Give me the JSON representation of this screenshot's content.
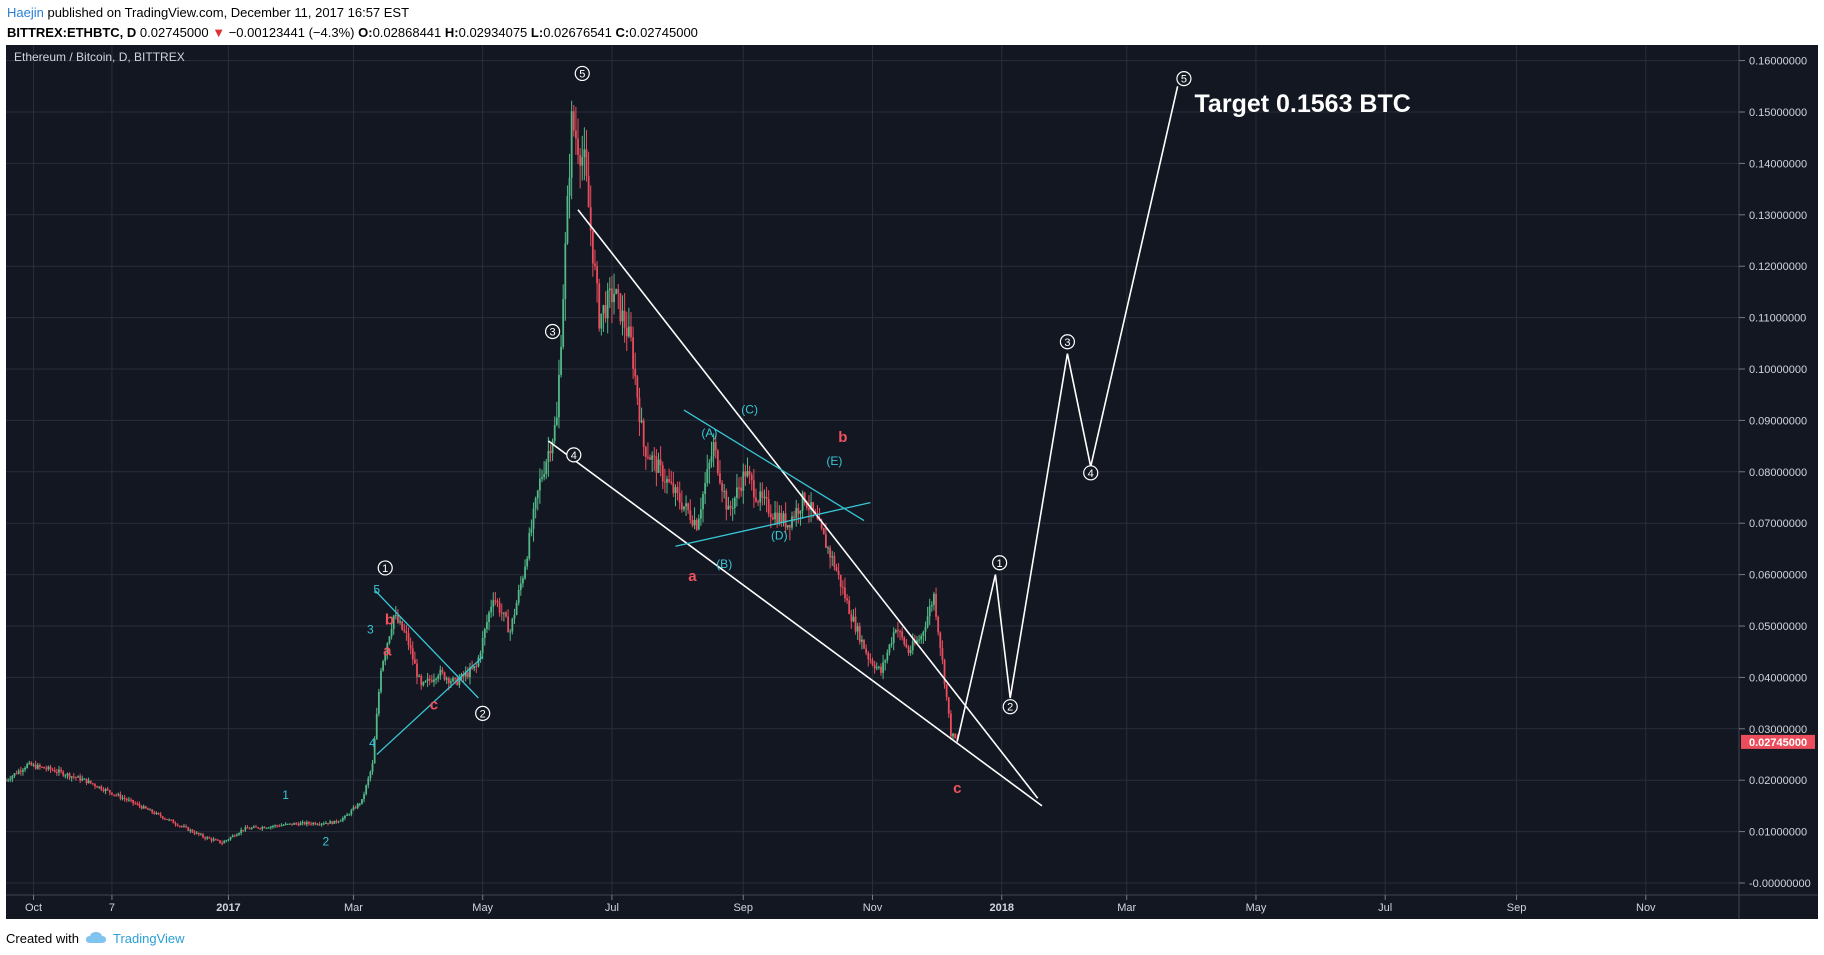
{
  "header": {
    "author": "Haejin",
    "published": " published on TradingView.com, December 11, 2017 16:57 EST",
    "symbol": "BITTREX:ETHBTC, D",
    "last": "0.02745000",
    "change": "−0.00123441 (−4.3%)",
    "ohlc": [
      {
        "label": "O:",
        "value": "0.02868441"
      },
      {
        "label": "H:",
        "value": "0.02934075"
      },
      {
        "label": "L:",
        "value": "0.02676541"
      },
      {
        "label": "C:",
        "value": "0.02745000"
      }
    ]
  },
  "footer": {
    "created_with": "Created with",
    "brand": "TradingView"
  },
  "colors": {
    "background": "#131722",
    "grid": "#2a2e39",
    "up": "#53b987",
    "down": "#eb4d5c",
    "wave": "#ffffff",
    "cyan": "#38c7d6",
    "price_tag": "#eb4d5c"
  },
  "chart_data": {
    "type": "candlestick",
    "title": "Ethereum / Bitcoin, D, BITTREX",
    "ylim": [
      0,
      0.16
    ],
    "y_ticks": [
      "0.16000000",
      "0.15000000",
      "0.14000000",
      "0.13000000",
      "0.12000000",
      "0.11000000",
      "0.10000000",
      "0.09000000",
      "0.08000000",
      "0.07000000",
      "0.06000000",
      "0.05000000",
      "0.04000000",
      "0.03000000",
      "0.02000000",
      "0.01000000",
      "-0.00000000"
    ],
    "x_ticks": [
      "Oct",
      "7",
      "2017",
      "Mar",
      "May",
      "Jul",
      "Sep",
      "Nov",
      "2018",
      "Mar",
      "May",
      "Jul",
      "Sep",
      "Nov"
    ],
    "x_range": [
      "2016-09-18",
      "2018-12-15"
    ],
    "last_price": "0.02745000",
    "price_path": [
      [
        "2016-09-18",
        0.02
      ],
      [
        "2016-09-28",
        0.023
      ],
      [
        "2016-10-10",
        0.022
      ],
      [
        "2016-10-25",
        0.02
      ],
      [
        "2016-11-15",
        0.016
      ],
      [
        "2016-12-05",
        0.012
      ],
      [
        "2016-12-20",
        0.009
      ],
      [
        "2016-12-29",
        0.0078
      ],
      [
        "2017-01-08",
        0.0105
      ],
      [
        "2017-02-01",
        0.0115
      ],
      [
        "2017-02-20",
        0.0118
      ],
      [
        "2017-02-25",
        0.0128
      ],
      [
        "2017-03-05",
        0.016
      ],
      [
        "2017-03-10",
        0.023
      ],
      [
        "2017-03-14",
        0.042
      ],
      [
        "2017-03-20",
        0.052
      ],
      [
        "2017-03-26",
        0.048
      ],
      [
        "2017-04-02",
        0.038
      ],
      [
        "2017-04-10",
        0.041
      ],
      [
        "2017-04-18",
        0.039
      ],
      [
        "2017-04-28",
        0.042
      ],
      [
        "2017-05-06",
        0.056
      ],
      [
        "2017-05-14",
        0.049
      ],
      [
        "2017-05-20",
        0.06
      ],
      [
        "2017-05-28",
        0.078
      ],
      [
        "2017-06-05",
        0.09
      ],
      [
        "2017-06-12",
        0.148
      ],
      [
        "2017-06-18",
        0.14
      ],
      [
        "2017-06-25",
        0.11
      ],
      [
        "2017-07-02",
        0.115
      ],
      [
        "2017-07-10",
        0.105
      ],
      [
        "2017-07-16",
        0.085
      ],
      [
        "2017-07-24",
        0.08
      ],
      [
        "2017-08-01",
        0.075
      ],
      [
        "2017-08-10",
        0.07
      ],
      [
        "2017-08-18",
        0.085
      ],
      [
        "2017-08-25",
        0.072
      ],
      [
        "2017-09-02",
        0.08
      ],
      [
        "2017-09-08",
        0.075
      ],
      [
        "2017-09-15",
        0.072
      ],
      [
        "2017-09-22",
        0.07
      ],
      [
        "2017-09-30",
        0.075
      ],
      [
        "2017-10-06",
        0.07
      ],
      [
        "2017-10-14",
        0.062
      ],
      [
        "2017-10-22",
        0.052
      ],
      [
        "2017-10-30",
        0.044
      ],
      [
        "2017-11-05",
        0.041
      ],
      [
        "2017-11-12",
        0.05
      ],
      [
        "2017-11-18",
        0.045
      ],
      [
        "2017-11-24",
        0.048
      ],
      [
        "2017-11-30",
        0.056
      ],
      [
        "2017-12-04",
        0.043
      ],
      [
        "2017-12-08",
        0.029
      ],
      [
        "2017-12-11",
        0.0275
      ]
    ],
    "white_lines": [
      {
        "name": "upper",
        "points": [
          [
            "2017-06-15",
            0.131
          ],
          [
            "2018-01-18",
            0.0165
          ]
        ]
      },
      {
        "name": "lower",
        "points": [
          [
            "2017-06-01",
            0.086
          ],
          [
            "2018-01-20",
            0.015
          ]
        ]
      },
      {
        "name": "projection",
        "points": [
          [
            "2017-12-11",
            0.0275
          ],
          [
            "2017-12-29",
            0.06
          ],
          [
            "2018-01-05",
            0.036
          ],
          [
            "2018-02-01",
            0.103
          ],
          [
            "2018-02-12",
            0.081
          ],
          [
            "2018-03-25",
            0.155
          ]
        ]
      }
    ],
    "cyan_lines": [
      {
        "points": [
          [
            "2017-03-11",
            0.057
          ],
          [
            "2017-04-29",
            0.036
          ]
        ]
      },
      {
        "points": [
          [
            "2017-03-12",
            0.025
          ],
          [
            "2017-05-01",
            0.044
          ]
        ]
      },
      {
        "points": [
          [
            "2017-08-04",
            0.092
          ],
          [
            "2017-10-28",
            0.0705
          ]
        ]
      },
      {
        "points": [
          [
            "2017-07-31",
            0.0655
          ],
          [
            "2017-10-31",
            0.074
          ]
        ]
      }
    ],
    "circle_labels": [
      {
        "label": "1",
        "date": "2017-03-16",
        "price": 0.0613
      },
      {
        "label": "2",
        "date": "2017-05-01",
        "price": 0.033
      },
      {
        "label": "3",
        "date": "2017-06-03",
        "price": 0.1073
      },
      {
        "label": "4",
        "date": "2017-06-13",
        "price": 0.0833
      },
      {
        "label": "5",
        "date": "2017-06-17",
        "price": 0.1575
      },
      {
        "label": "1",
        "date": "2017-12-31",
        "price": 0.0623
      },
      {
        "label": "2",
        "date": "2018-01-05",
        "price": 0.0343
      },
      {
        "label": "3",
        "date": "2018-02-01",
        "price": 0.1053
      },
      {
        "label": "4",
        "date": "2018-02-12",
        "price": 0.0798
      },
      {
        "label": "5",
        "date": "2018-03-28",
        "price": 0.1565
      }
    ],
    "cyan_labels": [
      {
        "text": "1",
        "date": "2017-01-28",
        "price": 0.0163
      },
      {
        "text": "2",
        "date": "2017-02-16",
        "price": 0.0073
      },
      {
        "text": "3",
        "date": "2017-03-09",
        "price": 0.0485
      },
      {
        "text": "5",
        "date": "2017-03-12",
        "price": 0.0563
      },
      {
        "text": "4",
        "date": "2017-03-10",
        "price": 0.0265
      },
      {
        "text": "(A)",
        "date": "2017-08-16",
        "price": 0.0868
      },
      {
        "text": "(B)",
        "date": "2017-08-23",
        "price": 0.0613
      },
      {
        "text": "(C)",
        "date": "2017-09-04",
        "price": 0.0913
      },
      {
        "text": "(D)",
        "date": "2017-09-18",
        "price": 0.0668
      },
      {
        "text": "(E)",
        "date": "2017-10-14",
        "price": 0.0813
      }
    ],
    "red_labels": [
      {
        "text": "b",
        "date": "2017-03-18",
        "price": 0.0503
      },
      {
        "text": "a",
        "date": "2017-03-17",
        "price": 0.0443
      },
      {
        "text": "c",
        "date": "2017-04-08",
        "price": 0.0338
      },
      {
        "text": "b",
        "date": "2017-10-18",
        "price": 0.0858
      },
      {
        "text": "a",
        "date": "2017-08-08",
        "price": 0.0588
      },
      {
        "text": "c",
        "date": "2017-12-11",
        "price": 0.0175
      }
    ],
    "annotation": {
      "text": "Target 0.1563 BTC",
      "date": "2018-04-02",
      "price": 0.15
    }
  }
}
